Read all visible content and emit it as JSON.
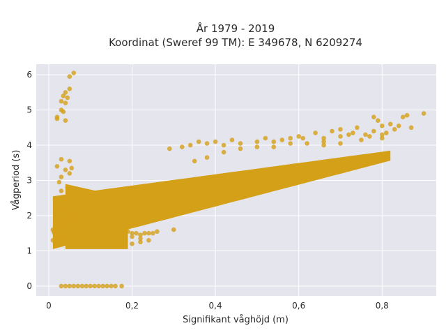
{
  "chart_data": {
    "type": "scatter",
    "title_lines": [
      "År 1979 - 2019",
      "Koordinat (Sweref 99 TM): E 349678, N 6209274"
    ],
    "xlabel": "Signifikant våghöjd (m)",
    "ylabel": "Vågperiod (s)",
    "xlim": [
      -0.03,
      0.93
    ],
    "ylim": [
      -0.28,
      6.3
    ],
    "x_ticks": [
      0,
      0.2,
      0.4,
      0.6,
      0.8
    ],
    "x_tick_labels": [
      "0",
      "0,2",
      "0,4",
      "0,6",
      "0,8"
    ],
    "y_ticks": [
      0,
      1,
      2,
      3,
      4,
      5,
      6
    ],
    "y_tick_labels": [
      "0",
      "1",
      "2",
      "3",
      "4",
      "5",
      "6"
    ],
    "grid": true,
    "point_color": "#d4a017",
    "plot_background": "#e5e5ee",
    "dense_band": {
      "x_range": [
        0.01,
        0.82
      ],
      "lower_y_at_x_min": 1.05,
      "lower_y_slope_per_m": 3.1,
      "upper_y_at_x_min": 2.55,
      "upper_y_slope_per_m": 1.6,
      "upper_y_cap": 4.0
    },
    "points": [
      [
        0.02,
        4.75
      ],
      [
        0.02,
        4.8
      ],
      [
        0.03,
        5.0
      ],
      [
        0.03,
        5.25
      ],
      [
        0.035,
        5.4
      ],
      [
        0.04,
        5.5
      ],
      [
        0.04,
        5.2
      ],
      [
        0.045,
        5.35
      ],
      [
        0.05,
        5.6
      ],
      [
        0.05,
        5.95
      ],
      [
        0.06,
        6.05
      ],
      [
        0.035,
        4.95
      ],
      [
        0.04,
        4.7
      ],
      [
        0.03,
        3.6
      ],
      [
        0.05,
        3.55
      ],
      [
        0.02,
        3.4
      ],
      [
        0.04,
        3.3
      ],
      [
        0.03,
        3.1
      ],
      [
        0.05,
        3.2
      ],
      [
        0.055,
        3.35
      ],
      [
        0.025,
        2.95
      ],
      [
        0.045,
        2.8
      ],
      [
        0.03,
        2.7
      ],
      [
        0.05,
        2.6
      ],
      [
        0.02,
        2.5
      ],
      [
        0.04,
        2.4
      ],
      [
        0.035,
        2.15
      ],
      [
        0.05,
        2.05
      ],
      [
        0.04,
        1.9
      ],
      [
        0.03,
        1.75
      ],
      [
        0.055,
        1.85
      ],
      [
        0.045,
        1.7
      ],
      [
        0.01,
        1.6
      ],
      [
        0.012,
        1.55
      ],
      [
        0.014,
        1.5
      ],
      [
        0.016,
        1.45
      ],
      [
        0.01,
        1.3
      ],
      [
        0.02,
        1.35
      ],
      [
        0.03,
        0.0
      ],
      [
        0.04,
        0.0
      ],
      [
        0.05,
        0.0
      ],
      [
        0.06,
        0.0
      ],
      [
        0.07,
        0.0
      ],
      [
        0.08,
        0.0
      ],
      [
        0.09,
        0.0
      ],
      [
        0.1,
        0.0
      ],
      [
        0.11,
        0.0
      ],
      [
        0.12,
        0.0
      ],
      [
        0.13,
        0.0
      ],
      [
        0.14,
        0.0
      ],
      [
        0.15,
        0.0
      ],
      [
        0.16,
        0.0
      ],
      [
        0.175,
        0.0
      ],
      [
        0.19,
        1.55
      ],
      [
        0.2,
        1.5
      ],
      [
        0.21,
        1.5
      ],
      [
        0.22,
        1.45
      ],
      [
        0.23,
        1.5
      ],
      [
        0.24,
        1.5
      ],
      [
        0.25,
        1.5
      ],
      [
        0.26,
        1.55
      ],
      [
        0.3,
        1.6
      ],
      [
        0.2,
        1.4
      ],
      [
        0.22,
        1.35
      ],
      [
        0.16,
        1.15
      ],
      [
        0.18,
        1.2
      ],
      [
        0.2,
        1.2
      ],
      [
        0.22,
        1.25
      ],
      [
        0.24,
        1.3
      ],
      [
        0.29,
        3.9
      ],
      [
        0.32,
        3.95
      ],
      [
        0.34,
        4.0
      ],
      [
        0.36,
        4.1
      ],
      [
        0.38,
        4.05
      ],
      [
        0.4,
        4.1
      ],
      [
        0.42,
        4.0
      ],
      [
        0.44,
        4.15
      ],
      [
        0.46,
        4.05
      ],
      [
        0.5,
        4.1
      ],
      [
        0.52,
        4.2
      ],
      [
        0.54,
        4.1
      ],
      [
        0.56,
        4.15
      ],
      [
        0.61,
        4.2
      ],
      [
        0.64,
        4.35
      ],
      [
        0.66,
        4.2
      ],
      [
        0.68,
        4.4
      ],
      [
        0.7,
        4.45
      ],
      [
        0.72,
        4.3
      ],
      [
        0.74,
        4.5
      ],
      [
        0.76,
        4.3
      ],
      [
        0.78,
        4.4
      ],
      [
        0.8,
        4.55
      ],
      [
        0.82,
        4.6
      ],
      [
        0.84,
        4.55
      ],
      [
        0.85,
        4.8
      ],
      [
        0.86,
        4.85
      ],
      [
        0.87,
        4.5
      ],
      [
        0.9,
        4.9
      ],
      [
        0.78,
        4.8
      ],
      [
        0.79,
        4.7
      ],
      [
        0.8,
        4.3
      ],
      [
        0.81,
        4.35
      ],
      [
        0.83,
        4.45
      ],
      [
        0.8,
        4.2
      ],
      [
        0.77,
        4.25
      ],
      [
        0.75,
        4.15
      ],
      [
        0.73,
        4.35
      ],
      [
        0.7,
        4.25
      ],
      [
        0.66,
        4.1
      ],
      [
        0.6,
        4.25
      ],
      [
        0.58,
        4.2
      ],
      [
        0.35,
        3.55
      ],
      [
        0.38,
        3.65
      ],
      [
        0.42,
        3.8
      ],
      [
        0.46,
        3.9
      ],
      [
        0.5,
        3.95
      ],
      [
        0.54,
        3.95
      ],
      [
        0.58,
        4.05
      ],
      [
        0.62,
        4.05
      ],
      [
        0.66,
        4.0
      ],
      [
        0.7,
        4.05
      ]
    ]
  }
}
